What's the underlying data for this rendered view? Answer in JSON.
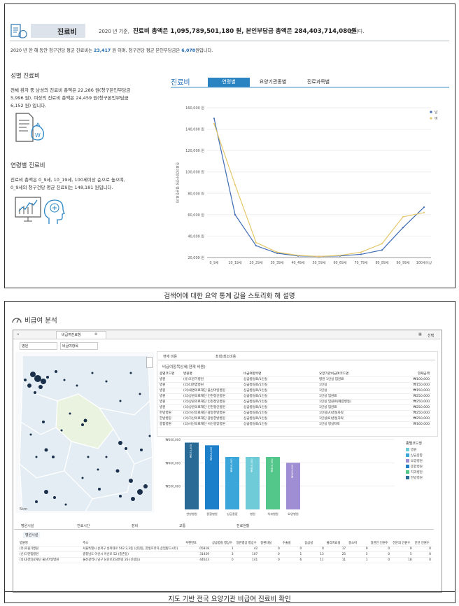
{
  "top": {
    "section_title": "진료비",
    "summary_prefix": "2020 년 기준,",
    "summary_main": "진료비 총액은 1,095,789,501,180 원, 본인부담금 총액은 284,403,714,080원",
    "summary_suffix": "입니다.",
    "avg_line_1": "2020 년 한 해 동안 청구건당 평균 진료비는",
    "avg_value_1": "23,417",
    "avg_line_2": "원 이며, 청구건당 평균 본인부담금은",
    "avg_value_2": "6,078",
    "avg_line_3": "원입니다.",
    "gender_heading": "성별 진료비",
    "gender_text_1": "전체 환자 중 남성의 진료비 총액은 22,286 원(청구본인부담금",
    "gender_text_2": "5,996 원), 여성의 진료비 총액은 24,459 원(청구본인부담금",
    "gender_text_3": "6,152 원) 입니다.",
    "age_heading": "연령별 진료비",
    "age_text_1": "진료비 총액은 0_9세, 10_19세, 100세이상 순으로 높으며,",
    "age_text_2": "0_9세의 청구건당 평균 진료비는 148,181 원입니다.",
    "chart_title": "진료비",
    "tabs": [
      "연령별",
      "요양기관종별",
      "진료과목별"
    ],
    "legend": [
      "남",
      "여"
    ],
    "y_axis_label": "진료비(청구건당 평균진료비)",
    "caption": "검색어에 대한 요약 통계 값을 스토리화 해 설명"
  },
  "chart_data": {
    "type": "line",
    "categories": [
      "0_9세",
      "10_19세",
      "20_29세",
      "30_39세",
      "40_49세",
      "50_59세",
      "60_69세",
      "70_79세",
      "80_89세",
      "90_99세",
      "100세이상"
    ],
    "series": [
      {
        "name": "남",
        "color": "#3e6bb3",
        "values": [
          150000,
          60000,
          31000,
          24000,
          21500,
          21000,
          21500,
          23000,
          27000,
          48000,
          67000
        ]
      },
      {
        "name": "여",
        "color": "#e5c86a",
        "values": [
          145000,
          88000,
          34000,
          25000,
          22000,
          21000,
          22000,
          25000,
          33000,
          58000,
          62000
        ]
      }
    ],
    "yticks": [
      "20,000 원",
      "40,000 원",
      "60,000 원",
      "80,000 원",
      "100,000 원",
      "120,000 원",
      "140,000 원",
      "160,000 원"
    ],
    "ylim": [
      20000,
      160000
    ]
  },
  "bottom": {
    "section_title": "비급여 분석",
    "window_title": "비급여진료항",
    "toolbar_right": "선택",
    "filter_1": "병원",
    "filter_2": "비급여항목",
    "panel_tabs": [
      "현재 비용",
      "최대/최소비용"
    ],
    "panel_subtitle": "비급여항목상세(현재 비용)",
    "table_headers": [
      "종별코드명",
      "병원명",
      "비급여항목명",
      "요양기관비급여코드명",
      "현재금액"
    ],
    "table_rows": [
      [
        "병원",
        "(유)호원기병원",
        "상급병실료/1인실",
        "병원 1인실 입원료",
        "₩100,000"
      ],
      [
        "병원",
        "(의)디엔엠병원",
        "상급병실료/1인실",
        "1인실",
        "₩150,000"
      ],
      [
        "병원",
        "(의)내경의료재단 울산마일병원",
        "상급병실료/1인실",
        "1인실",
        "₩150,000"
      ],
      [
        "병원",
        "(의)상원의료재단 인천정인병원",
        "상급병실료/1인실",
        "1인실 입원료",
        "₩250,000"
      ],
      [
        "병원",
        "(의)상원의료재단 인천정인병원",
        "상급병실료/1인실",
        "1인실 입원료(폐렴병동)",
        "₩250,000"
      ],
      [
        "병원",
        "(의)상원의료재단 인천정인병원",
        "상급병실료/1인실",
        "1인실 입원료",
        "₩250,000"
      ],
      [
        "한방병원",
        "(의)가산의료재단 광동한방병원",
        "상급병실료/1인실",
        "1인실(A)병실자락",
        "₩250,000"
      ],
      [
        "한방병원",
        "(의)가산의료재단 광동한방병원",
        "상급병실료/1인실",
        "1인실(B)병실자락",
        "₩250,000"
      ],
      [
        "종합병원",
        "(의)서산의료재단 서산중앙병원",
        "상급병실료/1인실",
        "1인실 병실자락",
        "₩160,000"
      ]
    ],
    "bar_chart": {
      "yticks": [
        "₩200,000",
        "₩400,000",
        "₩600,000"
      ],
      "bars": [
        {
          "label": "한방병원",
          "value": "₩573,000",
          "color": "#2a6a96",
          "v": 573000
        },
        {
          "label": "종합병원",
          "value": "₩550,000",
          "color": "#1b7fc9",
          "v": 550000
        },
        {
          "label": "상급종합",
          "value": "₩450,000",
          "color": "#3aa6d9",
          "v": 450000
        },
        {
          "label": "병원",
          "value": "₩450,000",
          "color": "#6ecbd7",
          "v": 450000
        },
        {
          "label": "치과병원",
          "value": "₩450,000",
          "color": "#53c68a",
          "v": 450000
        },
        {
          "label": "요양병원",
          "value": "₩400,000",
          "color": "#9f8ed3",
          "v": 400000
        }
      ],
      "legend_title": "종별코드명",
      "legend": [
        {
          "label": "병원",
          "color": "#6ecbd7"
        },
        {
          "label": "상급종합",
          "color": "#3aa6d9"
        },
        {
          "label": "요양병원",
          "color": "#9f8ed3"
        },
        {
          "label": "종합병원",
          "color": "#1b7fc9"
        },
        {
          "label": "치과병원",
          "color": "#53c68a"
        },
        {
          "label": "한방병원",
          "color": "#2a6a96"
        }
      ]
    },
    "map_label": "5km",
    "bottom_tabs": [
      "병원시설",
      "진료시간",
      "장비",
      "교통",
      "전료현황"
    ],
    "bottom_subtab": "병원시설",
    "bottom_headers": [
      "병원명",
      "주소",
      "우편번호",
      "상급병실 병상수",
      "일반병상 병상수",
      "중환자실",
      "수술실",
      "응급실",
      "물리치료실",
      "중소아",
      "일반인 인원수",
      "전문의 인원수",
      "인턴 인원수"
    ],
    "bottom_rows": [
      [
        "(유)호원기병원",
        "서울특별시 송파구 송파대로 562 2,3층 (신천동, 한빛프라자,상업빌드시티)",
        "05818",
        "1",
        "42",
        "0",
        "0",
        "0",
        "17",
        "9",
        "0",
        "9",
        "0"
      ],
      [
        "(신)디엔엠병원",
        "충청남도 아산시 아산로 52 (중촌동)",
        "31459",
        "3",
        "107",
        "0",
        "1",
        "13",
        "25",
        "5",
        "0",
        "5",
        "0"
      ],
      [
        "(의)내경의료재단 울산마일병원",
        "울산광역시 남구 남산로354번길 26 (신정동)",
        "44623",
        "0",
        "141",
        "0",
        "6",
        "11",
        "11",
        "1",
        "0",
        "18",
        "0"
      ]
    ],
    "caption": "지도 기반 전국 요양기관 비급여 진료비 확인"
  }
}
